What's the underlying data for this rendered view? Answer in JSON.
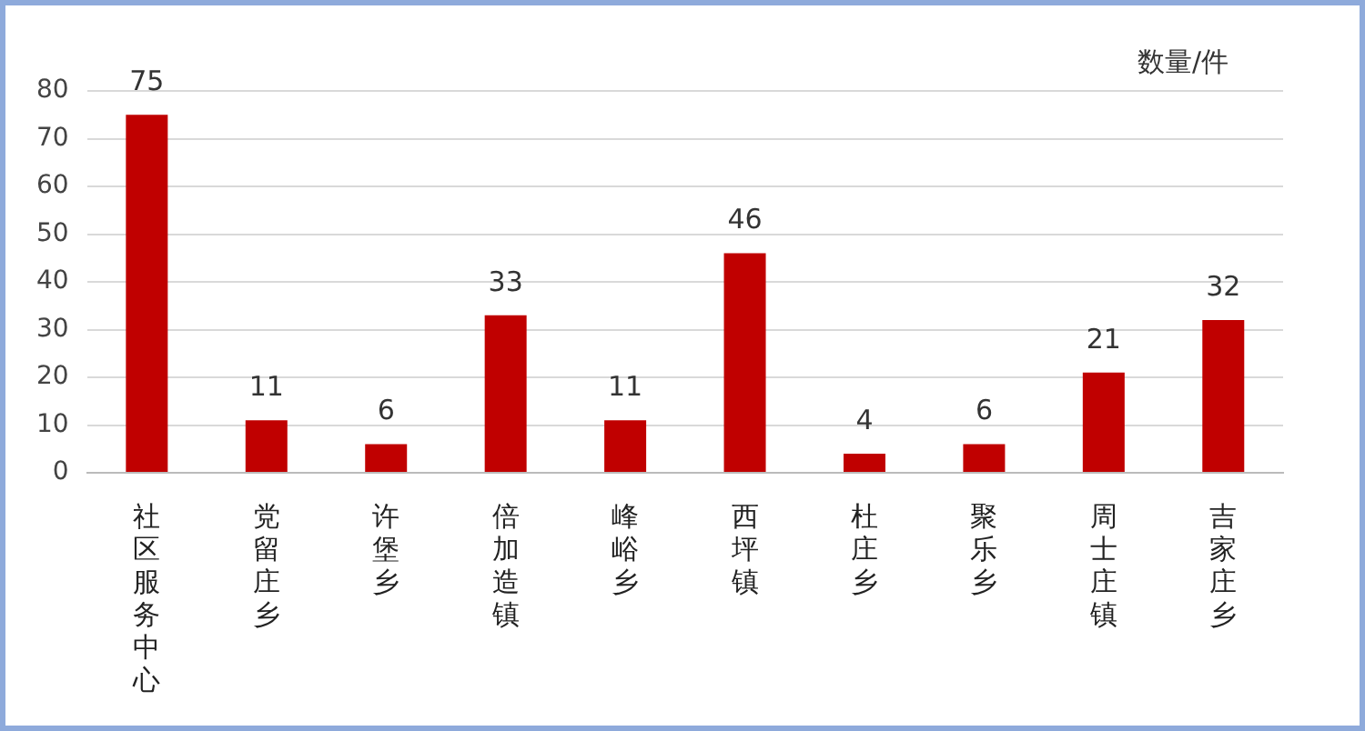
{
  "chart_data": {
    "type": "bar",
    "ylabel": "数量/件",
    "categories": [
      "社区服务中心",
      "党留庄乡",
      "许堡乡",
      "倍加造镇",
      "峰峪乡",
      "西坪镇",
      "杜庄乡",
      "聚乐乡",
      "周士庄镇",
      "吉家庄乡"
    ],
    "values": [
      75,
      11,
      6,
      33,
      11,
      46,
      4,
      6,
      21,
      32
    ],
    "color": "#c00000",
    "ylim": [
      0,
      80
    ],
    "yticks": [
      0,
      10,
      20,
      30,
      40,
      50,
      60,
      70,
      80
    ],
    "grid": "y",
    "data_labels": true,
    "legend": false
  }
}
